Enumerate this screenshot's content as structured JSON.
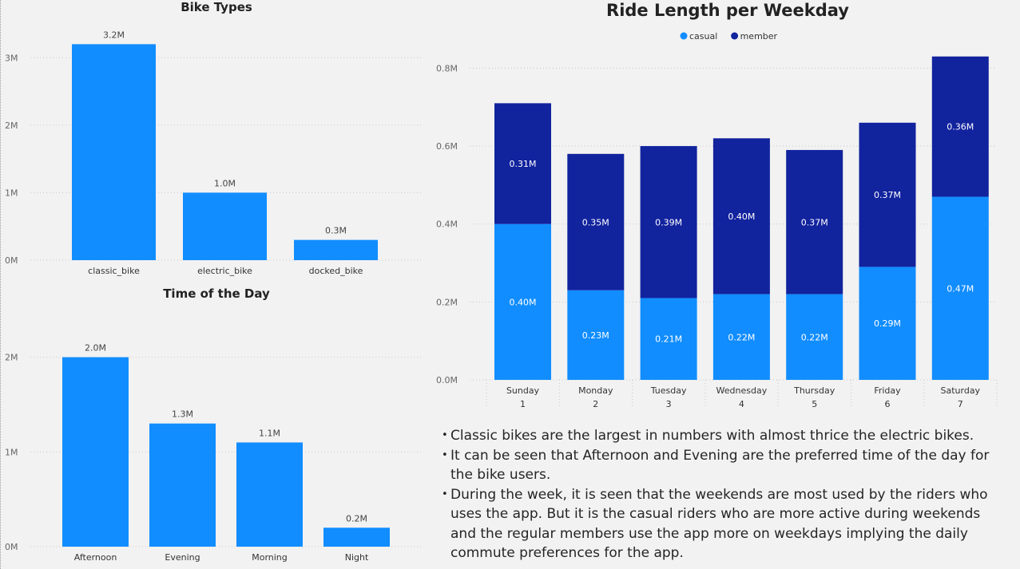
{
  "chart_data": [
    {
      "id": "bike-types",
      "type": "bar",
      "title": "Bike Types",
      "categories": [
        "classic_bike",
        "electric_bike",
        "docked_bike"
      ],
      "values": [
        3.2,
        1.0,
        0.3
      ],
      "data_labels": [
        "3.2M",
        "1.0M",
        "0.3M"
      ],
      "ylim": [
        0,
        3.5
      ],
      "yticks": [
        0,
        1,
        2,
        3
      ],
      "ytick_labels": [
        "0M",
        "1M",
        "2M",
        "3M"
      ],
      "color": "#118dff",
      "grid": true
    },
    {
      "id": "time-of-day",
      "type": "bar",
      "title": "Time of the Day",
      "categories": [
        "Afternoon",
        "Evening",
        "Morning",
        "Night"
      ],
      "values": [
        2.0,
        1.3,
        1.1,
        0.2
      ],
      "data_labels": [
        "2.0M",
        "1.3M",
        "1.1M",
        "0.2M"
      ],
      "ylim": [
        0,
        2.3
      ],
      "yticks": [
        0,
        1,
        2
      ],
      "ytick_labels": [
        "0M",
        "1M",
        "2M"
      ],
      "color": "#118dff",
      "grid": true
    },
    {
      "id": "ride-length",
      "type": "bar",
      "stacked": true,
      "title": "Ride Length per Weekday",
      "categories": [
        "Sunday",
        "Monday",
        "Tuesday",
        "Wednesday",
        "Thursday",
        "Friday",
        "Saturday"
      ],
      "category_sublabels": [
        "1",
        "2",
        "3",
        "4",
        "5",
        "6",
        "7"
      ],
      "series": [
        {
          "name": "casual",
          "color": "#118dff",
          "values": [
            0.4,
            0.23,
            0.21,
            0.22,
            0.22,
            0.29,
            0.47
          ],
          "labels": [
            "0.40M",
            "0.23M",
            "0.21M",
            "0.22M",
            "0.22M",
            "0.29M",
            "0.47M"
          ]
        },
        {
          "name": "member",
          "color": "#12239e",
          "values": [
            0.31,
            0.35,
            0.39,
            0.4,
            0.37,
            0.37,
            0.36
          ],
          "labels": [
            "0.31M",
            "0.35M",
            "0.39M",
            "0.40M",
            "0.37M",
            "0.37M",
            "0.36M"
          ]
        }
      ],
      "ylim": [
        0,
        0.85
      ],
      "yticks": [
        0,
        0.2,
        0.4,
        0.6,
        0.8
      ],
      "ytick_labels": [
        "0.0M",
        "0.2M",
        "0.4M",
        "0.6M",
        "0.8M"
      ],
      "legend_position": "top-center",
      "grid": true
    }
  ],
  "notes": [
    "Classic bikes are the largest in numbers with almost thrice the electric bikes.",
    "It can be seen that Afternoon and Evening are the preferred time of the day for the bike users.",
    "During the week, it is seen that the weekends are most used by the riders who uses the app. But it is the casual riders who are more active during weekends and the regular members use the app more on weekdays implying the daily commute preferences for the app."
  ]
}
